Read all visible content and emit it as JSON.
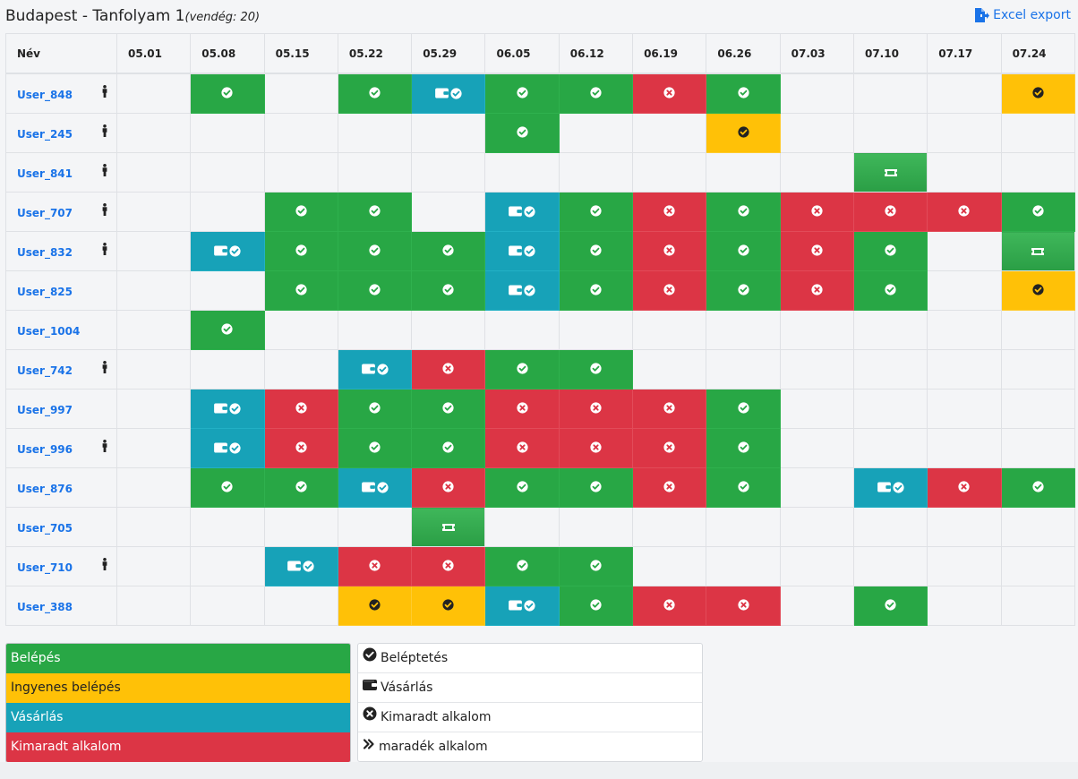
{
  "header": {
    "title": "Budapest - Tanfolyam 1",
    "subtitle": "(vendég: 20)",
    "export_label": "Excel export"
  },
  "table": {
    "name_header": "Név",
    "dates": [
      "05.01",
      "05.08",
      "05.15",
      "05.22",
      "05.29",
      "06.05",
      "06.12",
      "06.19",
      "06.26",
      "07.03",
      "07.10",
      "07.17",
      "07.24"
    ],
    "rows": [
      {
        "name": "User_848",
        "person": true,
        "cells": [
          "",
          "G",
          "",
          "G",
          "B",
          "G",
          "G",
          "R",
          "G",
          "",
          "",
          "",
          "Y"
        ]
      },
      {
        "name": "User_245",
        "person": true,
        "cells": [
          "",
          "",
          "",
          "",
          "",
          "G",
          "",
          "",
          "Y",
          "",
          "",
          "",
          ""
        ]
      },
      {
        "name": "User_841",
        "person": true,
        "cells": [
          "",
          "",
          "",
          "",
          "",
          "",
          "",
          "",
          "",
          "",
          "P",
          "",
          ""
        ]
      },
      {
        "name": "User_707",
        "person": true,
        "cells": [
          "",
          "",
          "G",
          "G",
          "",
          "B",
          "G",
          "R",
          "G",
          "R",
          "R",
          "R",
          "G"
        ]
      },
      {
        "name": "User_832",
        "person": true,
        "cells": [
          "",
          "B",
          "G",
          "G",
          "G",
          "B",
          "G",
          "R",
          "G",
          "R",
          "G",
          "",
          "P"
        ]
      },
      {
        "name": "User_825",
        "person": false,
        "cells": [
          "",
          "",
          "G",
          "G",
          "G",
          "B",
          "G",
          "R",
          "G",
          "R",
          "G",
          "",
          "Y"
        ]
      },
      {
        "name": "User_1004",
        "person": false,
        "cells": [
          "",
          "G",
          "",
          "",
          "",
          "",
          "",
          "",
          "",
          "",
          "",
          "",
          ""
        ]
      },
      {
        "name": "User_742",
        "person": true,
        "cells": [
          "",
          "",
          "",
          "B",
          "R",
          "G",
          "G",
          "",
          "",
          "",
          "",
          "",
          ""
        ]
      },
      {
        "name": "User_997",
        "person": false,
        "cells": [
          "",
          "B",
          "R",
          "G",
          "G",
          "R",
          "R",
          "R",
          "G",
          "",
          "",
          "",
          ""
        ]
      },
      {
        "name": "User_996",
        "person": true,
        "cells": [
          "",
          "B",
          "R",
          "G",
          "G",
          "R",
          "R",
          "R",
          "G",
          "",
          "",
          "",
          ""
        ]
      },
      {
        "name": "User_876",
        "person": false,
        "cells": [
          "",
          "G",
          "G",
          "B",
          "R",
          "G",
          "G",
          "R",
          "G",
          "",
          "B",
          "R",
          "G"
        ]
      },
      {
        "name": "User_705",
        "person": false,
        "cells": [
          "",
          "",
          "",
          "",
          "P",
          "",
          "",
          "",
          "",
          "",
          "",
          "",
          ""
        ]
      },
      {
        "name": "User_710",
        "person": true,
        "cells": [
          "",
          "",
          "B",
          "R",
          "R",
          "G",
          "G",
          "",
          "",
          "",
          "",
          "",
          ""
        ]
      },
      {
        "name": "User_388",
        "person": false,
        "cells": [
          "",
          "",
          "",
          "Y",
          "Y",
          "B",
          "G",
          "R",
          "R",
          "",
          "G",
          "",
          ""
        ]
      }
    ]
  },
  "colors": {
    "green": "#28a745",
    "yellow": "#ffc107",
    "blue": "#17a2b8",
    "red": "#dc3545",
    "link": "#1a73e8"
  },
  "legend_colors": {
    "entry": "Belépés",
    "free_entry": "Ingyenes belépés",
    "purchase": "Vásárlás",
    "missed": "Kimaradt alkalom"
  },
  "legend_icons": {
    "checkin": "Beléptetés",
    "purchase": "Vásárlás",
    "missed": "Kimaradt alkalom",
    "remaining": "maradék alkalom"
  },
  "icons": {
    "export": "file-export-icon",
    "person": "person-icon",
    "check": "check-circle-icon",
    "missed": "times-circle-icon",
    "wallet": "wallet-icon",
    "ticket": "ticket-icon",
    "remaining": "angle-double-right-icon"
  }
}
